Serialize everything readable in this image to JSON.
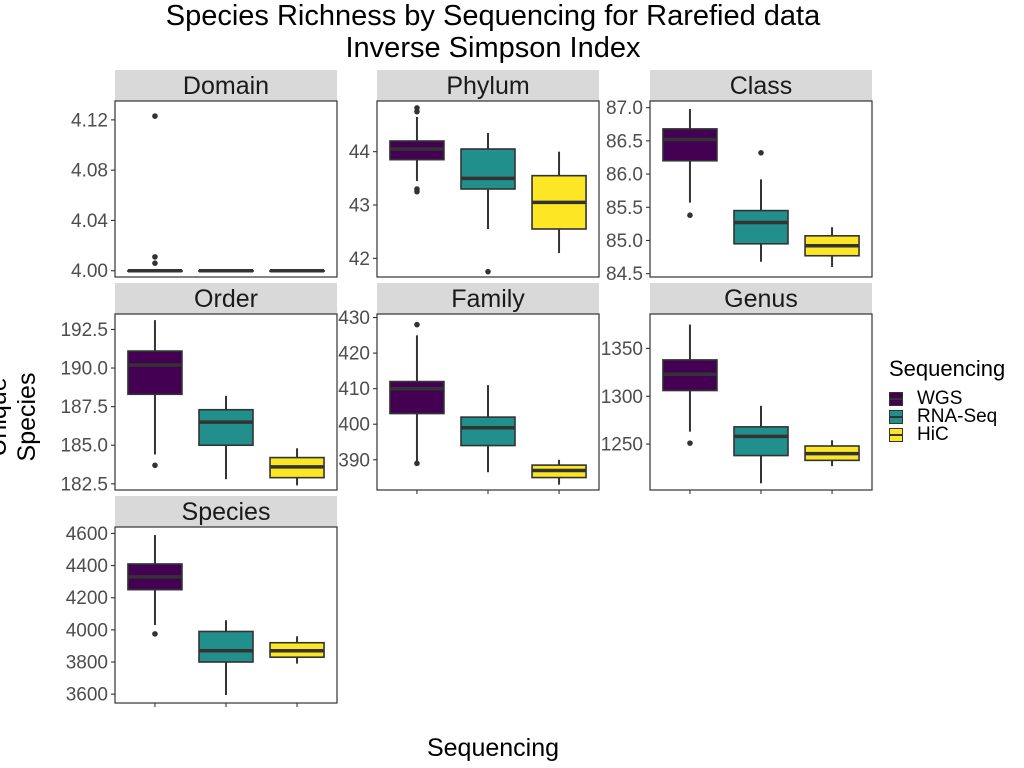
{
  "title_line1": "Species Richness by Sequencing for Rarefied data",
  "title_line2": "Inverse Simpson Index",
  "legend_title": "Sequencing",
  "colors": {
    "WGS": "#440154",
    "RNA-Seq": "#21908C",
    "HiC": "#FDE725",
    "box_line": "#333333",
    "strip_bg": "#d9d9d9"
  },
  "chart_data": {
    "type": "boxplot",
    "xlabel": "Sequencing",
    "ylabel": "Unique Species",
    "groups": [
      "WGS",
      "RNA-Seq",
      "HiC"
    ],
    "legend_position": "right",
    "facets": [
      {
        "name": "Domain",
        "ylim": [
          3.995,
          4.135
        ],
        "ticks": [
          4.0,
          4.04,
          4.08,
          4.12
        ],
        "tick_labels": [
          "4.00",
          "4.04",
          "4.08",
          "4.12"
        ],
        "boxes": [
          {
            "group": "WGS",
            "min": 4.0,
            "q1": 4.0,
            "median": 4.0,
            "q3": 4.0,
            "max": 4.0,
            "outliers": [
              4.006,
              4.011,
              4.123
            ]
          },
          {
            "group": "RNA-Seq",
            "min": 4.0,
            "q1": 4.0,
            "median": 4.0,
            "q3": 4.0,
            "max": 4.0,
            "outliers": []
          },
          {
            "group": "HiC",
            "min": 4.0,
            "q1": 4.0,
            "median": 4.0,
            "q3": 4.0,
            "max": 4.0,
            "outliers": []
          }
        ]
      },
      {
        "name": "Phylum",
        "ylim": [
          41.65,
          44.95
        ],
        "ticks": [
          42,
          43,
          44
        ],
        "tick_labels": [
          "42",
          "43",
          "44"
        ],
        "boxes": [
          {
            "group": "WGS",
            "min": 43.45,
            "q1": 43.85,
            "median": 44.05,
            "q3": 44.2,
            "max": 44.65,
            "outliers": [
              43.25,
              43.3,
              44.75,
              44.82
            ]
          },
          {
            "group": "RNA-Seq",
            "min": 42.55,
            "q1": 43.3,
            "median": 43.5,
            "q3": 44.05,
            "max": 44.35,
            "outliers": [
              41.75
            ]
          },
          {
            "group": "HiC",
            "min": 42.1,
            "q1": 42.55,
            "median": 43.05,
            "q3": 43.55,
            "max": 44.0,
            "outliers": []
          }
        ]
      },
      {
        "name": "Class",
        "ylim": [
          84.45,
          87.1
        ],
        "ticks": [
          84.5,
          85.0,
          85.5,
          86.0,
          86.5,
          87.0
        ],
        "tick_labels": [
          "84.5",
          "85.0",
          "85.5",
          "86.0",
          "86.5",
          "87.0"
        ],
        "boxes": [
          {
            "group": "WGS",
            "min": 85.57,
            "q1": 86.2,
            "median": 86.52,
            "q3": 86.68,
            "max": 86.98,
            "outliers": [
              85.38
            ]
          },
          {
            "group": "RNA-Seq",
            "min": 84.68,
            "q1": 84.95,
            "median": 85.27,
            "q3": 85.45,
            "max": 85.92,
            "outliers": [
              86.32
            ]
          },
          {
            "group": "HiC",
            "min": 84.6,
            "q1": 84.77,
            "median": 84.92,
            "q3": 85.07,
            "max": 85.2,
            "outliers": []
          }
        ]
      },
      {
        "name": "Order",
        "ylim": [
          182.1,
          193.5
        ],
        "ticks": [
          182.5,
          185.0,
          187.5,
          190.0,
          192.5
        ],
        "tick_labels": [
          "182.5",
          "185.0",
          "187.5",
          "190.0",
          "192.5"
        ],
        "boxes": [
          {
            "group": "WGS",
            "min": 184.4,
            "q1": 188.3,
            "median": 190.2,
            "q3": 191.1,
            "max": 193.1,
            "outliers": [
              183.7
            ]
          },
          {
            "group": "RNA-Seq",
            "min": 182.8,
            "q1": 185.0,
            "median": 186.5,
            "q3": 187.3,
            "max": 188.2,
            "outliers": []
          },
          {
            "group": "HiC",
            "min": 182.4,
            "q1": 182.9,
            "median": 183.6,
            "q3": 184.2,
            "max": 184.8,
            "outliers": []
          }
        ]
      },
      {
        "name": "Family",
        "ylim": [
          381.5,
          431.0
        ],
        "ticks": [
          390,
          400,
          410,
          420,
          430
        ],
        "tick_labels": [
          "390",
          "400",
          "410",
          "420",
          "430"
        ],
        "boxes": [
          {
            "group": "WGS",
            "min": 389,
            "q1": 403,
            "median": 410,
            "q3": 412,
            "max": 425,
            "outliers": [
              389,
              428
            ]
          },
          {
            "group": "RNA-Seq",
            "min": 386.5,
            "q1": 394,
            "median": 399,
            "q3": 402,
            "max": 411,
            "outliers": []
          },
          {
            "group": "HiC",
            "min": 383,
            "q1": 385,
            "median": 387,
            "q3": 388.5,
            "max": 390,
            "outliers": []
          }
        ]
      },
      {
        "name": "Genus",
        "ylim": [
          1202,
          1386
        ],
        "ticks": [
          1250,
          1300,
          1350
        ],
        "tick_labels": [
          "1250",
          "1300",
          "1350"
        ],
        "boxes": [
          {
            "group": "WGS",
            "min": 1263,
            "q1": 1306,
            "median": 1323,
            "q3": 1338,
            "max": 1375,
            "outliers": [
              1251
            ]
          },
          {
            "group": "RNA-Seq",
            "min": 1209,
            "q1": 1238,
            "median": 1258,
            "q3": 1268,
            "max": 1290,
            "outliers": []
          },
          {
            "group": "HiC",
            "min": 1227,
            "q1": 1233,
            "median": 1240,
            "q3": 1248,
            "max": 1254,
            "outliers": []
          }
        ]
      },
      {
        "name": "Species",
        "ylim": [
          3545,
          4640
        ],
        "ticks": [
          3600,
          3800,
          4000,
          4200,
          4400,
          4600
        ],
        "tick_labels": [
          "3600",
          "3800",
          "4000",
          "4200",
          "4400",
          "4600"
        ],
        "boxes": [
          {
            "group": "WGS",
            "min": 4030,
            "q1": 4250,
            "median": 4330,
            "q3": 4410,
            "max": 4590,
            "outliers": [
              3975
            ]
          },
          {
            "group": "RNA-Seq",
            "min": 3595,
            "q1": 3800,
            "median": 3870,
            "q3": 3990,
            "max": 4060,
            "outliers": []
          },
          {
            "group": "HiC",
            "min": 3790,
            "q1": 3830,
            "median": 3870,
            "q3": 3920,
            "max": 3960,
            "outliers": []
          }
        ]
      }
    ]
  }
}
